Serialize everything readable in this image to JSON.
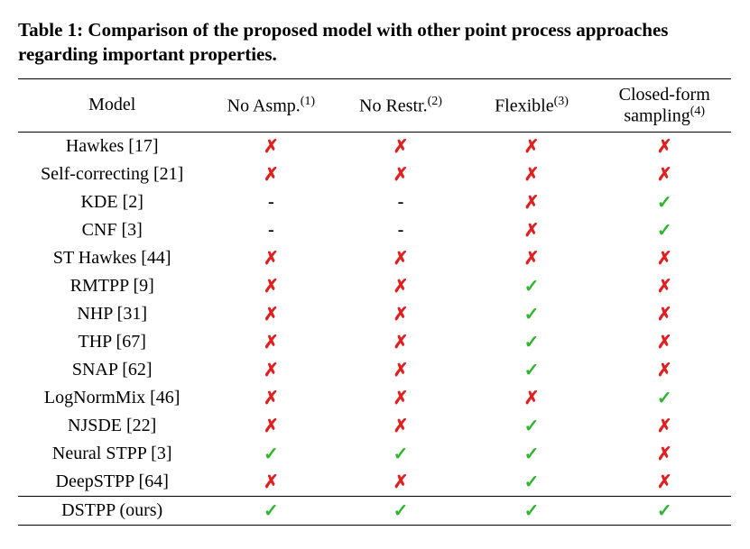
{
  "caption": "Table 1: Comparison of the proposed model with other point process approaches regarding important properties.",
  "columns": {
    "model": "Model",
    "c1_base": "No Asmp.",
    "c1_sup": "(1)",
    "c2_base": "No Restr.",
    "c2_sup": "(2)",
    "c3_base": "Flexible",
    "c3_sup": "(3)",
    "c4_line1": "Closed-form",
    "c4_line2": "sampling",
    "c4_sup": "(4)"
  },
  "marks": {
    "check": "✓",
    "cross": "✗",
    "dash": "-"
  },
  "colors": {
    "check": "#2fb52f",
    "cross": "#e02020",
    "text": "#000000",
    "background": "#ffffff"
  },
  "rows": [
    {
      "model": "Hawkes [17]",
      "v": [
        "cross",
        "cross",
        "cross",
        "cross"
      ]
    },
    {
      "model": "Self-correcting [21]",
      "v": [
        "cross",
        "cross",
        "cross",
        "cross"
      ]
    },
    {
      "model": "KDE [2]",
      "v": [
        "dash",
        "dash",
        "cross",
        "check"
      ]
    },
    {
      "model": "CNF [3]",
      "v": [
        "dash",
        "dash",
        "cross",
        "check"
      ]
    },
    {
      "model": "ST Hawkes [44]",
      "v": [
        "cross",
        "cross",
        "cross",
        "cross"
      ]
    },
    {
      "model": "RMTPP [9]",
      "v": [
        "cross",
        "cross",
        "check",
        "cross"
      ]
    },
    {
      "model": "NHP [31]",
      "v": [
        "cross",
        "cross",
        "check",
        "cross"
      ]
    },
    {
      "model": "THP [67]",
      "v": [
        "cross",
        "cross",
        "check",
        "cross"
      ]
    },
    {
      "model": "SNAP [62]",
      "v": [
        "cross",
        "cross",
        "check",
        "cross"
      ]
    },
    {
      "model": "LogNormMix [46]",
      "v": [
        "cross",
        "cross",
        "cross",
        "check"
      ]
    },
    {
      "model": "NJSDE [22]",
      "v": [
        "cross",
        "cross",
        "check",
        "cross"
      ]
    },
    {
      "model": "Neural STPP [3]",
      "v": [
        "check",
        "check",
        "check",
        "cross"
      ]
    },
    {
      "model": "DeepSTPP [64]",
      "v": [
        "cross",
        "cross",
        "check",
        "cross"
      ]
    }
  ],
  "ours": {
    "model": "DSTPP (ours)",
    "v": [
      "check",
      "check",
      "check",
      "check"
    ]
  }
}
